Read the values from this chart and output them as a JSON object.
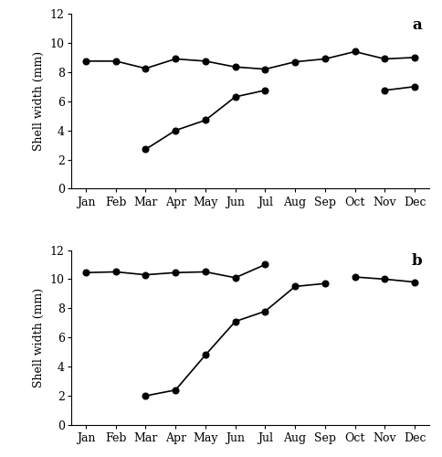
{
  "months": [
    "Jan",
    "Feb",
    "Mar",
    "Apr",
    "May",
    "Jun",
    "Jul",
    "Aug",
    "Sep",
    "Oct",
    "Nov",
    "Dec"
  ],
  "panel_a": {
    "cohort1": [
      8.75,
      8.75,
      8.25,
      8.9,
      8.75,
      8.35,
      8.2,
      8.7,
      8.9,
      9.4,
      8.9,
      9.0
    ],
    "cohort2": [
      null,
      null,
      2.7,
      4.0,
      4.7,
      6.3,
      6.75,
      null,
      null,
      null,
      6.75,
      7.0
    ]
  },
  "panel_b": {
    "cohort1": [
      10.45,
      10.5,
      10.3,
      10.45,
      10.5,
      10.1,
      11.0,
      null,
      null,
      10.15,
      10.0,
      9.8
    ],
    "cohort2": [
      null,
      null,
      2.0,
      2.4,
      4.8,
      7.1,
      7.8,
      9.5,
      9.7,
      null,
      null,
      null
    ]
  },
  "ylabel": "Shell width (mm)",
  "ylim": [
    0,
    12
  ],
  "yticks": [
    0,
    2,
    4,
    6,
    8,
    10,
    12
  ],
  "label_a": "a",
  "label_b": "b",
  "line_color": "#000000",
  "marker": "o",
  "markersize": 5,
  "linewidth": 1.2,
  "background_color": "#ffffff",
  "tick_fontsize": 9,
  "ylabel_fontsize": 9,
  "label_fontsize": 12
}
